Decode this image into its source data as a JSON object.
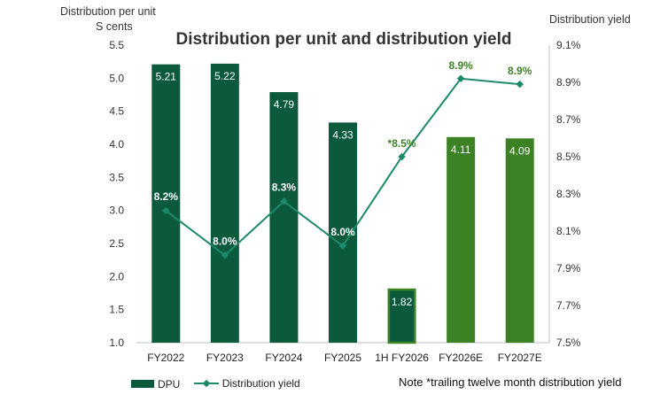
{
  "chart_data": {
    "type": "bar+line",
    "title": "Distribution per unit and distribution yield",
    "left_axis_title": [
      "Distribution per unit",
      "S cents"
    ],
    "right_axis_title": "Distribution yield",
    "categories": [
      "FY2022",
      "FY2023",
      "FY2024",
      "FY2025",
      "1H FY2026",
      "FY2026E",
      "FY2027E"
    ],
    "y_left": {
      "min": 1.0,
      "max": 5.5,
      "step": 0.5,
      "ticks": [
        "1.0",
        "1.5",
        "2.0",
        "2.5",
        "3.0",
        "3.5",
        "4.0",
        "4.5",
        "5.0",
        "5.5"
      ]
    },
    "y_right": {
      "min": 7.5,
      "max": 9.1,
      "step": 0.2,
      "ticks": [
        "7.5%",
        "7.7%",
        "7.9%",
        "8.1%",
        "8.3%",
        "8.5%",
        "8.7%",
        "8.9%",
        "9.1%"
      ]
    },
    "series": [
      {
        "name": "DPU",
        "kind": "bar",
        "values": [
          5.21,
          5.22,
          4.79,
          4.33,
          1.82,
          4.11,
          4.09
        ],
        "labels": [
          "5.21",
          "5.22",
          "4.79",
          "4.33",
          "1.82",
          "4.11",
          "4.09"
        ],
        "bar_styles": [
          "actual",
          "actual",
          "actual",
          "actual",
          "interim",
          "forecast",
          "forecast"
        ]
      },
      {
        "name": "Distribution yield",
        "kind": "line",
        "values": [
          8.21,
          7.97,
          8.26,
          8.02,
          8.5,
          8.92,
          8.89
        ],
        "labels": [
          "8.2%",
          "8.0%",
          "8.3%",
          "8.0%",
          "*8.5%",
          "8.9%",
          "8.9%"
        ],
        "label_styles": [
          "actual",
          "actual",
          "actual",
          "actual",
          "forecast",
          "forecast",
          "forecast"
        ]
      }
    ],
    "colors": {
      "actual": "#0b5a3c",
      "forecast": "#3c8225",
      "interim_border": "#3c8225",
      "line": "#1c8a6a",
      "label_actual": "#ffffff",
      "label_forecast": "#3c8225",
      "axis": "#bfbfbf"
    },
    "legend": {
      "position": "bottom-left",
      "items": [
        "DPU",
        "Distribution yield"
      ]
    },
    "note": "Note *trailing twelve month distribution yield",
    "grid": false
  }
}
